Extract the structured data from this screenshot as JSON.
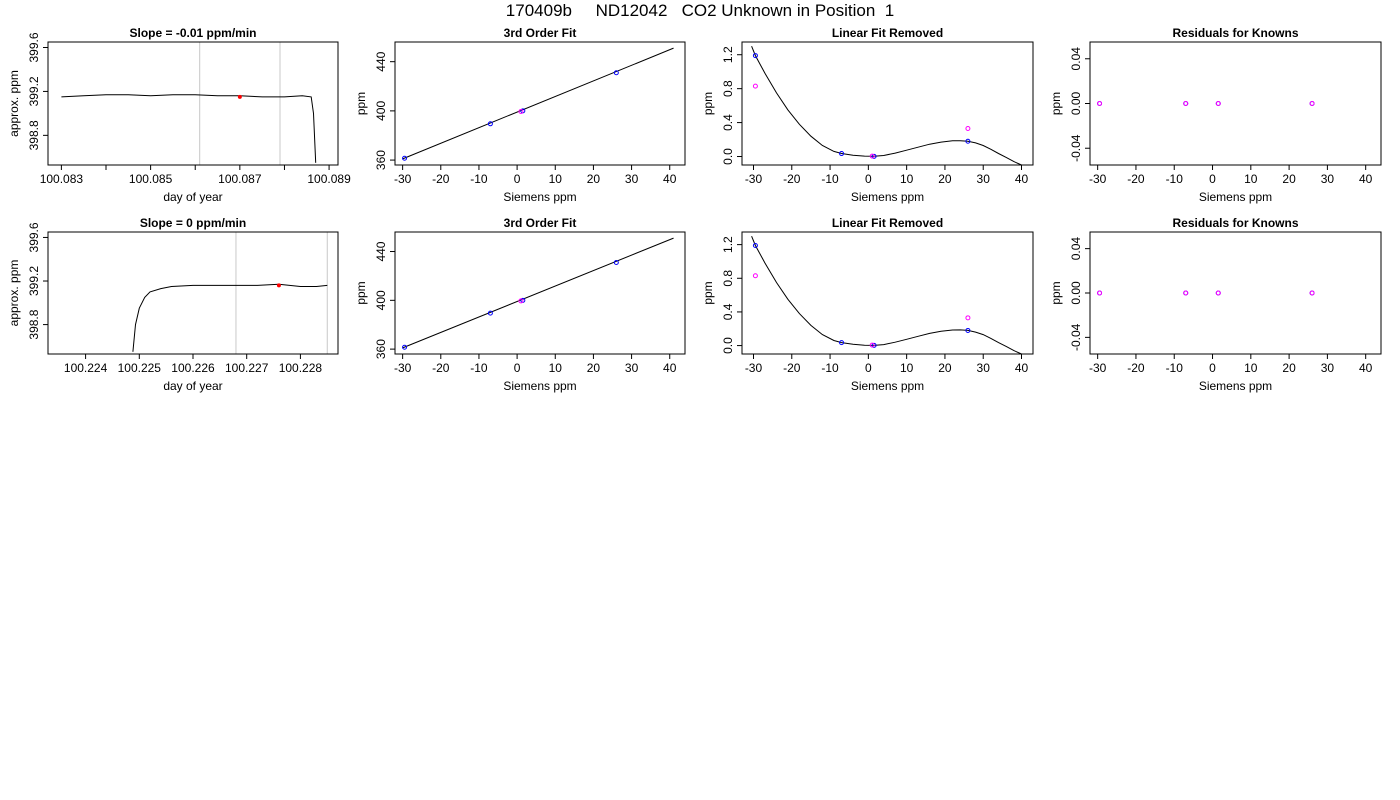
{
  "title": "170409b     ND12042   CO2 Unknown in Position  1",
  "colors": {
    "trace": "#000000",
    "vline": "#c8c8c8",
    "known": "#0000ff",
    "unknown": "#ff00ff",
    "marker": "#ff0000"
  },
  "chart_data": [
    {
      "type": "line",
      "title": "Slope =  -0.01  ppm/min",
      "xlabel": "day of year",
      "ylabel": "approx. ppm",
      "xlim": [
        100.0827,
        100.0892
      ],
      "ylim": [
        398.53,
        399.65
      ],
      "xticks": [
        100.083,
        100.084,
        100.085,
        100.086,
        100.087,
        100.088,
        100.089
      ],
      "xtick_labels": [
        "100.083",
        "",
        "100.085",
        "",
        "100.087",
        "",
        "100.089"
      ],
      "yticks": [
        398.8,
        399.2,
        399.6
      ],
      "ytick_labels": [
        "398.8",
        "399.2",
        "399.6"
      ],
      "series": [
        {
          "x": [
            100.083,
            100.0835,
            100.084,
            100.0845,
            100.085,
            100.0855,
            100.086,
            100.0865,
            100.087,
            100.0875,
            100.088,
            100.0884,
            100.0886,
            100.08865,
            100.0887
          ],
          "y": [
            399.15,
            399.16,
            399.17,
            399.17,
            399.16,
            399.17,
            399.17,
            399.16,
            399.16,
            399.15,
            399.15,
            399.16,
            399.15,
            399.0,
            398.55
          ]
        }
      ],
      "vlines": [
        100.0861,
        100.0879
      ],
      "marker": {
        "x": 100.087,
        "y": 399.15
      }
    },
    {
      "type": "line",
      "title": "3rd Order Fit",
      "xlabel": "Siemens ppm",
      "ylabel": "ppm",
      "xlim": [
        -32,
        44
      ],
      "ylim": [
        356,
        456
      ],
      "xticks": [
        -30,
        -20,
        -10,
        0,
        10,
        20,
        30,
        40
      ],
      "xtick_labels": [
        "-30",
        "-20",
        "-10",
        "0",
        "10",
        "20",
        "30",
        "40"
      ],
      "yticks": [
        360,
        400,
        440
      ],
      "ytick_labels": [
        "360",
        "400",
        "440"
      ],
      "fit_line": {
        "x": [
          -30,
          41
        ],
        "y": [
          361,
          451
        ]
      },
      "known_points": {
        "x": [
          -29.5,
          -7,
          1.5,
          26
        ],
        "y": [
          361.5,
          389.5,
          400,
          431
        ]
      },
      "unknown_points": {
        "x": [
          1
        ],
        "y": [
          399.5
        ]
      }
    },
    {
      "type": "scatter",
      "title": "Linear Fit Removed",
      "xlabel": "Siemens ppm",
      "ylabel": "ppm",
      "xlim": [
        -33,
        43
      ],
      "ylim": [
        -0.1,
        1.35
      ],
      "xticks": [
        -30,
        -20,
        -10,
        0,
        10,
        20,
        30,
        40
      ],
      "xtick_labels": [
        "-30",
        "-20",
        "-10",
        "0",
        "10",
        "20",
        "30",
        "40"
      ],
      "yticks": [
        0.0,
        0.4,
        0.8,
        1.2
      ],
      "ytick_labels": [
        "0.0",
        "0.4",
        "0.8",
        "1.2"
      ],
      "curve": {
        "x": [
          -30.5,
          -29.5,
          -27,
          -24,
          -21,
          -18,
          -15,
          -12,
          -9,
          -7,
          -4,
          -1,
          1.5,
          4,
          7,
          10,
          13,
          16,
          19,
          22,
          24,
          26,
          28,
          30,
          32,
          34,
          36,
          38,
          40
        ],
        "y": [
          1.3,
          1.19,
          0.98,
          0.75,
          0.55,
          0.38,
          0.24,
          0.13,
          0.06,
          0.035,
          0.015,
          0.005,
          0.002,
          0.012,
          0.04,
          0.075,
          0.11,
          0.145,
          0.17,
          0.185,
          0.187,
          0.18,
          0.16,
          0.13,
          0.085,
          0.035,
          -0.01,
          -0.06,
          -0.1
        ]
      },
      "known_points": {
        "x": [
          -29.5,
          -7,
          1.5,
          26
        ],
        "y": [
          1.19,
          0.035,
          0.002,
          0.18
        ]
      },
      "unknown_points": {
        "x": [
          -29.5,
          1,
          26
        ],
        "y": [
          0.83,
          0.005,
          0.33
        ]
      }
    },
    {
      "type": "scatter",
      "title": "Residuals for Knowns",
      "xlabel": "Siemens ppm",
      "ylabel": "ppm",
      "xlim": [
        -32,
        44
      ],
      "ylim": [
        -0.055,
        0.055
      ],
      "xticks": [
        -30,
        -20,
        -10,
        0,
        10,
        20,
        30,
        40
      ],
      "xtick_labels": [
        "-30",
        "-20",
        "-10",
        "0",
        "10",
        "20",
        "30",
        "40"
      ],
      "yticks": [
        -0.04,
        0.0,
        0.04
      ],
      "ytick_labels": [
        "-0.04",
        "0.00",
        "0.04"
      ],
      "known_points": {
        "x": [
          -29.5,
          -7,
          1.5,
          26
        ],
        "y": [
          0,
          0,
          0,
          0
        ]
      },
      "unknown_points": {
        "x": [
          -29.5,
          -7,
          1.5,
          26
        ],
        "y": [
          0,
          0,
          0,
          0
        ]
      }
    },
    {
      "type": "line",
      "title": "Slope =  0  ppm/min",
      "xlabel": "day of year",
      "ylabel": "approx. ppm",
      "xlim": [
        100.2233,
        100.2287
      ],
      "ylim": [
        398.53,
        399.65
      ],
      "xticks": [
        100.224,
        100.225,
        100.226,
        100.227,
        100.228
      ],
      "xtick_labels": [
        "100.224",
        "100.225",
        "100.226",
        "100.227",
        "100.228"
      ],
      "yticks": [
        398.8,
        399.2,
        399.6
      ],
      "ytick_labels": [
        "398.8",
        "399.2",
        "399.6"
      ],
      "series": [
        {
          "x": [
            100.22488,
            100.22493,
            100.225,
            100.2251,
            100.2252,
            100.2254,
            100.2256,
            100.226,
            100.2264,
            100.2268,
            100.2272,
            100.2276,
            100.228,
            100.2283,
            100.2285
          ],
          "y": [
            398.55,
            398.8,
            398.95,
            399.05,
            399.1,
            399.13,
            399.15,
            399.16,
            399.16,
            399.16,
            399.16,
            399.17,
            399.15,
            399.15,
            399.16
          ]
        }
      ],
      "vlines": [
        100.2268,
        100.2285
      ],
      "marker": {
        "x": 100.2276,
        "y": 399.16
      }
    },
    {
      "type": "line",
      "title": "3rd Order Fit",
      "xlabel": "Siemens ppm",
      "ylabel": "ppm",
      "xlim": [
        -32,
        44
      ],
      "ylim": [
        356,
        456
      ],
      "xticks": [
        -30,
        -20,
        -10,
        0,
        10,
        20,
        30,
        40
      ],
      "xtick_labels": [
        "-30",
        "-20",
        "-10",
        "0",
        "10",
        "20",
        "30",
        "40"
      ],
      "yticks": [
        360,
        400,
        440
      ],
      "ytick_labels": [
        "360",
        "400",
        "440"
      ],
      "fit_line": {
        "x": [
          -30,
          41
        ],
        "y": [
          361,
          451
        ]
      },
      "known_points": {
        "x": [
          -29.5,
          -7,
          1.5,
          26
        ],
        "y": [
          361.5,
          389.5,
          400,
          431
        ]
      },
      "unknown_points": {
        "x": [
          1
        ],
        "y": [
          399.5
        ]
      }
    },
    {
      "type": "scatter",
      "title": "Linear Fit Removed",
      "xlabel": "Siemens ppm",
      "ylabel": "ppm",
      "xlim": [
        -33,
        43
      ],
      "ylim": [
        -0.1,
        1.35
      ],
      "xticks": [
        -30,
        -20,
        -10,
        0,
        10,
        20,
        30,
        40
      ],
      "xtick_labels": [
        "-30",
        "-20",
        "-10",
        "0",
        "10",
        "20",
        "30",
        "40"
      ],
      "yticks": [
        0.0,
        0.4,
        0.8,
        1.2
      ],
      "ytick_labels": [
        "0.0",
        "0.4",
        "0.8",
        "1.2"
      ],
      "curve": {
        "x": [
          -30.5,
          -29.5,
          -27,
          -24,
          -21,
          -18,
          -15,
          -12,
          -9,
          -7,
          -4,
          -1,
          1.5,
          4,
          7,
          10,
          13,
          16,
          19,
          22,
          24,
          26,
          28,
          30,
          32,
          34,
          36,
          38,
          40
        ],
        "y": [
          1.3,
          1.19,
          0.98,
          0.75,
          0.55,
          0.38,
          0.24,
          0.13,
          0.06,
          0.035,
          0.015,
          0.005,
          0.002,
          0.012,
          0.04,
          0.075,
          0.11,
          0.145,
          0.17,
          0.185,
          0.187,
          0.18,
          0.16,
          0.13,
          0.085,
          0.035,
          -0.01,
          -0.06,
          -0.1
        ]
      },
      "known_points": {
        "x": [
          -29.5,
          -7,
          1.5,
          26
        ],
        "y": [
          1.19,
          0.035,
          0.002,
          0.18
        ]
      },
      "unknown_points": {
        "x": [
          -29.5,
          1,
          26
        ],
        "y": [
          0.83,
          0.005,
          0.33
        ]
      }
    },
    {
      "type": "scatter",
      "title": "Residuals for Knowns",
      "xlabel": "Siemens ppm",
      "ylabel": "ppm",
      "xlim": [
        -32,
        44
      ],
      "ylim": [
        -0.055,
        0.055
      ],
      "xticks": [
        -30,
        -20,
        -10,
        0,
        10,
        20,
        30,
        40
      ],
      "xtick_labels": [
        "-30",
        "-20",
        "-10",
        "0",
        "10",
        "20",
        "30",
        "40"
      ],
      "yticks": [
        -0.04,
        0.0,
        0.04
      ],
      "ytick_labels": [
        "-0.04",
        "0.00",
        "0.04"
      ],
      "known_points": {
        "x": [
          -29.5,
          -7,
          1.5,
          26
        ],
        "y": [
          0,
          0,
          0,
          0
        ]
      },
      "unknown_points": {
        "x": [
          -29.5,
          -7,
          1.5,
          26
        ],
        "y": [
          0,
          0,
          0,
          0
        ]
      }
    }
  ]
}
